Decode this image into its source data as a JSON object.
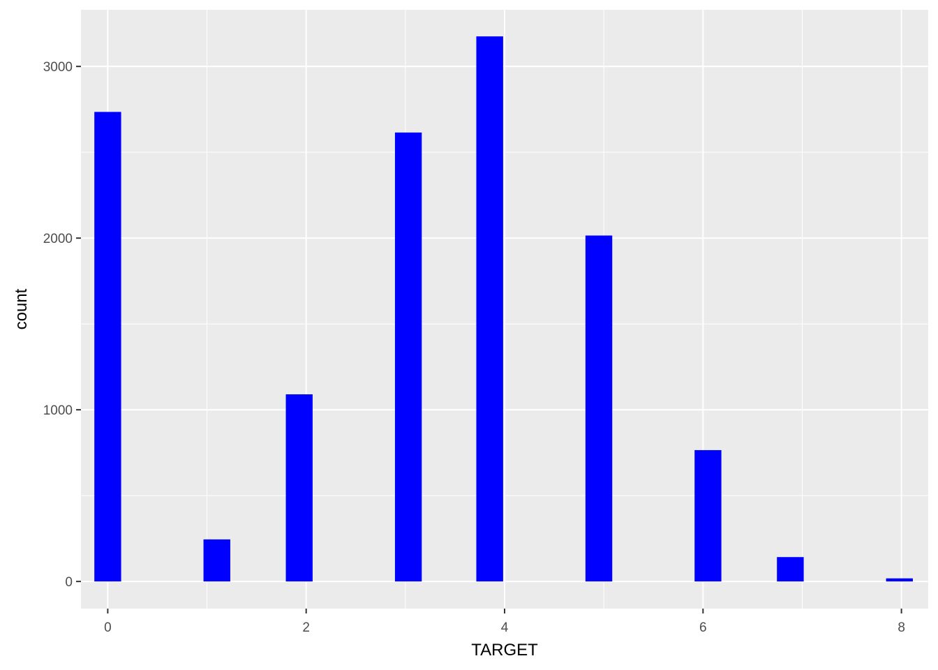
{
  "chart_data": {
    "type": "bar",
    "title": "",
    "xlabel": "TARGET",
    "ylabel": "count",
    "x_ticks": [
      0,
      2,
      4,
      6,
      8
    ],
    "y_ticks": [
      0,
      1000,
      2000,
      3000
    ],
    "xlim": [
      -0.27,
      8.27
    ],
    "ylim": [
      -158,
      3330
    ],
    "bin_width": 0.27,
    "bars": [
      {
        "x": 0.0,
        "value": 2735
      },
      {
        "x": 1.1,
        "value": 245
      },
      {
        "x": 1.93,
        "value": 1090
      },
      {
        "x": 3.03,
        "value": 2615
      },
      {
        "x": 3.85,
        "value": 3175
      },
      {
        "x": 4.95,
        "value": 2015
      },
      {
        "x": 6.05,
        "value": 765
      },
      {
        "x": 6.88,
        "value": 142
      },
      {
        "x": 7.98,
        "value": 18
      }
    ],
    "grid": true,
    "legend": "none",
    "colors": {
      "bar_fill": "#0000ff",
      "panel_background": "#ebebeb",
      "grid_line": "#ffffff",
      "tick_text": "#4d4d4d",
      "axis_title_text": "#000000"
    }
  }
}
